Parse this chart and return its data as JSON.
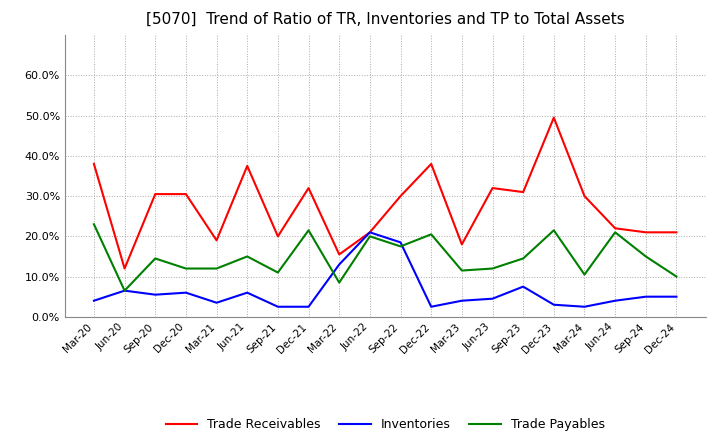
{
  "title": "[5070]  Trend of Ratio of TR, Inventories and TP to Total Assets",
  "x_labels": [
    "Mar-20",
    "Jun-20",
    "Sep-20",
    "Dec-20",
    "Mar-21",
    "Jun-21",
    "Sep-21",
    "Dec-21",
    "Mar-22",
    "Jun-22",
    "Sep-22",
    "Dec-22",
    "Mar-23",
    "Jun-23",
    "Sep-23",
    "Dec-23",
    "Mar-24",
    "Jun-24",
    "Sep-24",
    "Dec-24"
  ],
  "trade_receivables": [
    0.38,
    0.12,
    0.305,
    0.305,
    0.19,
    0.375,
    0.2,
    0.32,
    0.155,
    0.21,
    0.3,
    0.38,
    0.18,
    0.32,
    0.31,
    0.495,
    0.3,
    0.22,
    0.21,
    0.21
  ],
  "inventories": [
    0.04,
    0.065,
    0.055,
    0.06,
    0.035,
    0.06,
    0.025,
    0.025,
    0.13,
    0.21,
    0.185,
    0.025,
    0.04,
    0.045,
    0.075,
    0.03,
    0.025,
    0.04,
    0.05,
    0.05
  ],
  "trade_payables": [
    0.23,
    0.065,
    0.145,
    0.12,
    0.12,
    0.15,
    0.11,
    0.215,
    0.085,
    0.2,
    0.175,
    0.205,
    0.115,
    0.12,
    0.145,
    0.215,
    0.105,
    0.21,
    0.15,
    0.1
  ],
  "tr_color": "#ff0000",
  "inv_color": "#0000ff",
  "tp_color": "#008000",
  "ylim": [
    0.0,
    0.7
  ],
  "yticks": [
    0.0,
    0.1,
    0.2,
    0.3,
    0.4,
    0.5,
    0.6
  ],
  "background_color": "#ffffff",
  "grid_color": "#aaaaaa",
  "title_fontsize": 11,
  "legend_labels": [
    "Trade Receivables",
    "Inventories",
    "Trade Payables"
  ]
}
